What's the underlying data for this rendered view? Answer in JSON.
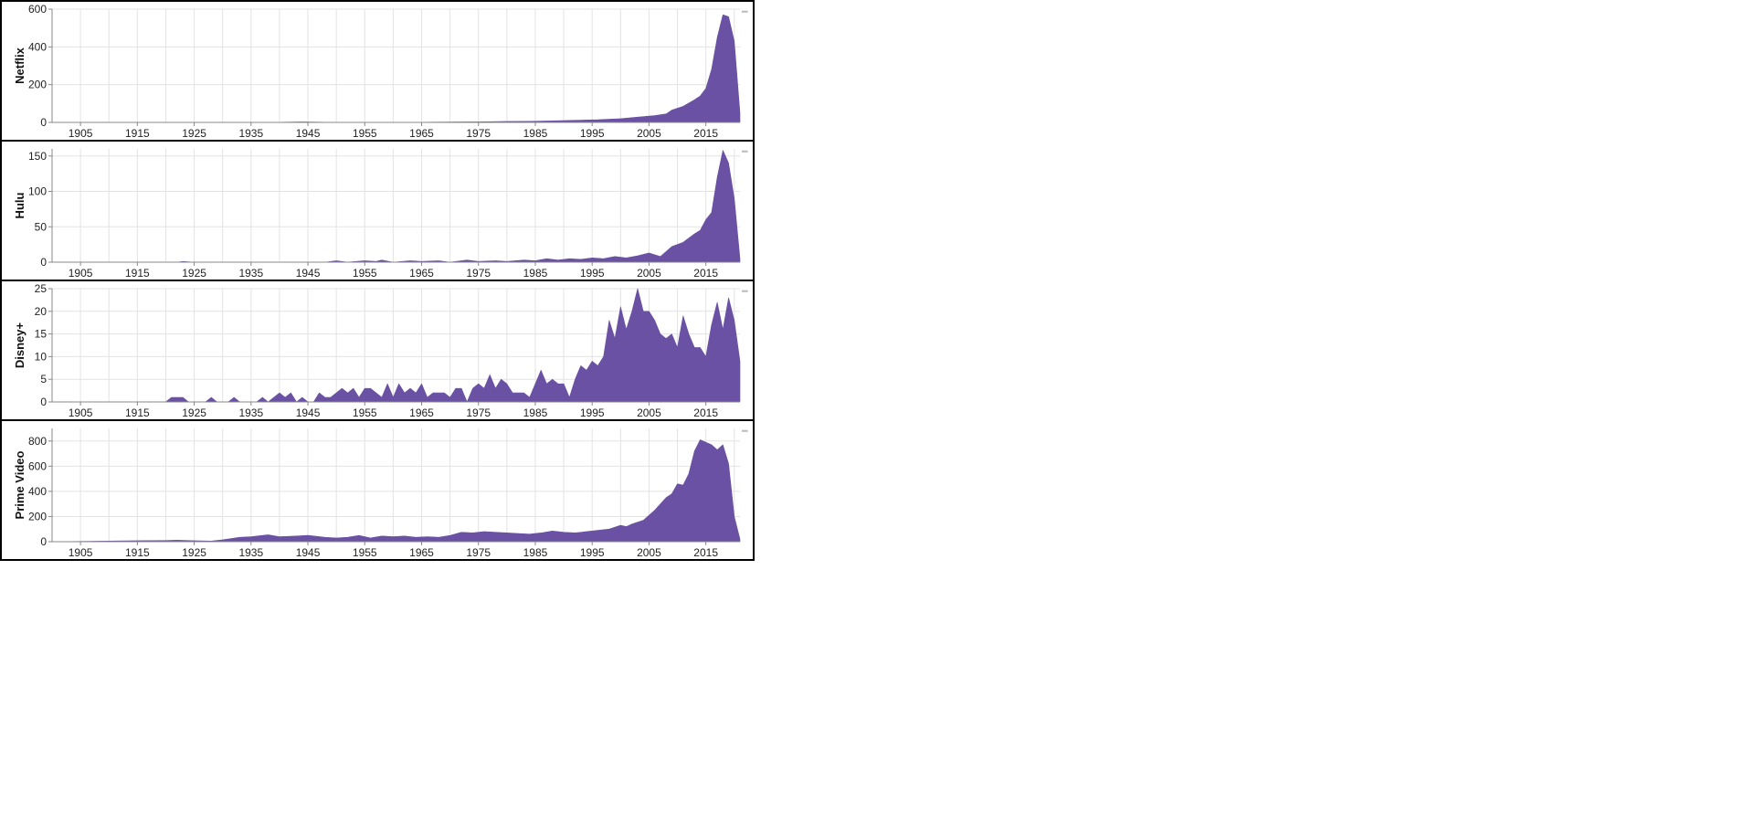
{
  "colors": {
    "area": "#6a51a3",
    "grid": "#e3e3e3",
    "axis": "#888888"
  },
  "chart_data": [
    {
      "type": "area",
      "ylabel": "Netflix",
      "xlim": [
        1900,
        2021
      ],
      "ylim": [
        0,
        600
      ],
      "yticks": [
        0,
        200,
        400,
        600
      ],
      "xticks": [
        1905,
        1915,
        1925,
        1935,
        1945,
        1955,
        1965,
        1975,
        1985,
        1995,
        2005,
        2015
      ],
      "grid": true,
      "points": [
        [
          1900,
          0
        ],
        [
          1940,
          1
        ],
        [
          1944,
          3
        ],
        [
          1948,
          1
        ],
        [
          1960,
          1
        ],
        [
          1965,
          1
        ],
        [
          1970,
          2
        ],
        [
          1975,
          3
        ],
        [
          1980,
          5
        ],
        [
          1984,
          6
        ],
        [
          1988,
          8
        ],
        [
          1992,
          11
        ],
        [
          1996,
          14
        ],
        [
          2000,
          20
        ],
        [
          2003,
          28
        ],
        [
          2006,
          36
        ],
        [
          2008,
          45
        ],
        [
          2009,
          65
        ],
        [
          2011,
          85
        ],
        [
          2013,
          120
        ],
        [
          2014,
          140
        ],
        [
          2015,
          180
        ],
        [
          2016,
          280
        ],
        [
          2017,
          450
        ],
        [
          2018,
          570
        ],
        [
          2019,
          560
        ],
        [
          2020,
          430
        ],
        [
          2021,
          50
        ]
      ]
    },
    {
      "type": "area",
      "ylabel": "Hulu",
      "xlim": [
        1900,
        2021
      ],
      "ylim": [
        0,
        160
      ],
      "yticks": [
        0,
        50,
        100,
        150
      ],
      "xticks": [
        1905,
        1915,
        1925,
        1935,
        1945,
        1955,
        1965,
        1975,
        1985,
        1995,
        2005,
        2015
      ],
      "grid": true,
      "points": [
        [
          1900,
          0
        ],
        [
          1922,
          0
        ],
        [
          1923,
          1
        ],
        [
          1925,
          0
        ],
        [
          1948,
          0
        ],
        [
          1950,
          2
        ],
        [
          1952,
          0
        ],
        [
          1955,
          2
        ],
        [
          1957,
          1
        ],
        [
          1958,
          3
        ],
        [
          1960,
          0
        ],
        [
          1963,
          2
        ],
        [
          1965,
          1
        ],
        [
          1968,
          2
        ],
        [
          1970,
          0
        ],
        [
          1973,
          3
        ],
        [
          1975,
          1
        ],
        [
          1978,
          2
        ],
        [
          1980,
          1
        ],
        [
          1983,
          3
        ],
        [
          1985,
          2
        ],
        [
          1987,
          5
        ],
        [
          1989,
          3
        ],
        [
          1991,
          5
        ],
        [
          1993,
          4
        ],
        [
          1995,
          6
        ],
        [
          1997,
          5
        ],
        [
          1999,
          8
        ],
        [
          2001,
          6
        ],
        [
          2003,
          9
        ],
        [
          2005,
          13
        ],
        [
          2007,
          8
        ],
        [
          2009,
          22
        ],
        [
          2011,
          28
        ],
        [
          2013,
          40
        ],
        [
          2014,
          45
        ],
        [
          2015,
          60
        ],
        [
          2016,
          70
        ],
        [
          2017,
          120
        ],
        [
          2018,
          158
        ],
        [
          2019,
          140
        ],
        [
          2020,
          90
        ],
        [
          2021,
          5
        ]
      ]
    },
    {
      "type": "area",
      "ylabel": "Disney+",
      "xlim": [
        1900,
        2021
      ],
      "ylim": [
        0,
        25
      ],
      "yticks": [
        0,
        5,
        10,
        15,
        20,
        25
      ],
      "xticks": [
        1905,
        1915,
        1925,
        1935,
        1945,
        1955,
        1965,
        1975,
        1985,
        1995,
        2005,
        2015
      ],
      "grid": true,
      "points": [
        [
          1900,
          0
        ],
        [
          1920,
          0
        ],
        [
          1921,
          1
        ],
        [
          1923,
          1
        ],
        [
          1924,
          0
        ],
        [
          1927,
          0
        ],
        [
          1928,
          1
        ],
        [
          1929,
          0
        ],
        [
          1931,
          0
        ],
        [
          1932,
          1
        ],
        [
          1933,
          0
        ],
        [
          1936,
          0
        ],
        [
          1937,
          1
        ],
        [
          1938,
          0
        ],
        [
          1940,
          2
        ],
        [
          1941,
          1
        ],
        [
          1942,
          2
        ],
        [
          1943,
          0
        ],
        [
          1944,
          1
        ],
        [
          1945,
          0
        ],
        [
          1946,
          0
        ],
        [
          1947,
          2
        ],
        [
          1948,
          1
        ],
        [
          1949,
          1
        ],
        [
          1951,
          3
        ],
        [
          1952,
          2
        ],
        [
          1953,
          3
        ],
        [
          1954,
          1
        ],
        [
          1955,
          3
        ],
        [
          1956,
          3
        ],
        [
          1958,
          1
        ],
        [
          1959,
          4
        ],
        [
          1960,
          1
        ],
        [
          1961,
          4
        ],
        [
          1962,
          2
        ],
        [
          1963,
          3
        ],
        [
          1964,
          2
        ],
        [
          1965,
          4
        ],
        [
          1966,
          1
        ],
        [
          1967,
          2
        ],
        [
          1969,
          2
        ],
        [
          1970,
          1
        ],
        [
          1971,
          3
        ],
        [
          1972,
          3
        ],
        [
          1973,
          0
        ],
        [
          1974,
          3
        ],
        [
          1975,
          4
        ],
        [
          1976,
          3
        ],
        [
          1977,
          6
        ],
        [
          1978,
          3
        ],
        [
          1979,
          5
        ],
        [
          1980,
          4
        ],
        [
          1981,
          2
        ],
        [
          1983,
          2
        ],
        [
          1984,
          1
        ],
        [
          1986,
          7
        ],
        [
          1987,
          4
        ],
        [
          1988,
          5
        ],
        [
          1989,
          4
        ],
        [
          1990,
          4
        ],
        [
          1991,
          1
        ],
        [
          1992,
          5
        ],
        [
          1993,
          8
        ],
        [
          1994,
          7
        ],
        [
          1995,
          9
        ],
        [
          1996,
          8
        ],
        [
          1997,
          10
        ],
        [
          1998,
          18
        ],
        [
          1999,
          14
        ],
        [
          2000,
          21
        ],
        [
          2001,
          16
        ],
        [
          2002,
          20
        ],
        [
          2003,
          25
        ],
        [
          2004,
          20
        ],
        [
          2005,
          20
        ],
        [
          2006,
          18
        ],
        [
          2007,
          15
        ],
        [
          2008,
          14
        ],
        [
          2009,
          15
        ],
        [
          2010,
          12
        ],
        [
          2011,
          19
        ],
        [
          2012,
          15
        ],
        [
          2013,
          12
        ],
        [
          2014,
          12
        ],
        [
          2015,
          10
        ],
        [
          2016,
          17
        ],
        [
          2017,
          22
        ],
        [
          2018,
          16
        ],
        [
          2019,
          23
        ],
        [
          2020,
          18
        ],
        [
          2021,
          9
        ]
      ]
    },
    {
      "type": "area",
      "ylabel": "Prime Video",
      "xlim": [
        1900,
        2021
      ],
      "ylim": [
        0,
        900
      ],
      "yticks": [
        0,
        200,
        400,
        600,
        800
      ],
      "xticks": [
        1905,
        1915,
        1925,
        1935,
        1945,
        1955,
        1965,
        1975,
        1985,
        1995,
        2005,
        2015
      ],
      "grid": true,
      "points": [
        [
          1900,
          0
        ],
        [
          1910,
          5
        ],
        [
          1915,
          8
        ],
        [
          1920,
          10
        ],
        [
          1922,
          12
        ],
        [
          1925,
          8
        ],
        [
          1928,
          5
        ],
        [
          1930,
          15
        ],
        [
          1933,
          35
        ],
        [
          1935,
          40
        ],
        [
          1938,
          55
        ],
        [
          1940,
          40
        ],
        [
          1943,
          45
        ],
        [
          1945,
          50
        ],
        [
          1948,
          35
        ],
        [
          1950,
          30
        ],
        [
          1952,
          35
        ],
        [
          1954,
          50
        ],
        [
          1956,
          30
        ],
        [
          1958,
          45
        ],
        [
          1960,
          40
        ],
        [
          1962,
          45
        ],
        [
          1964,
          35
        ],
        [
          1966,
          40
        ],
        [
          1968,
          35
        ],
        [
          1970,
          50
        ],
        [
          1972,
          75
        ],
        [
          1974,
          70
        ],
        [
          1976,
          80
        ],
        [
          1978,
          75
        ],
        [
          1980,
          70
        ],
        [
          1982,
          65
        ],
        [
          1984,
          60
        ],
        [
          1986,
          70
        ],
        [
          1988,
          85
        ],
        [
          1990,
          75
        ],
        [
          1992,
          70
        ],
        [
          1994,
          80
        ],
        [
          1996,
          90
        ],
        [
          1998,
          100
        ],
        [
          2000,
          130
        ],
        [
          2001,
          120
        ],
        [
          2002,
          140
        ],
        [
          2004,
          170
        ],
        [
          2006,
          250
        ],
        [
          2008,
          350
        ],
        [
          2009,
          380
        ],
        [
          2010,
          460
        ],
        [
          2011,
          450
        ],
        [
          2012,
          540
        ],
        [
          2013,
          720
        ],
        [
          2014,
          810
        ],
        [
          2015,
          790
        ],
        [
          2016,
          770
        ],
        [
          2017,
          730
        ],
        [
          2018,
          770
        ],
        [
          2019,
          620
        ],
        [
          2020,
          200
        ],
        [
          2021,
          20
        ]
      ]
    }
  ]
}
